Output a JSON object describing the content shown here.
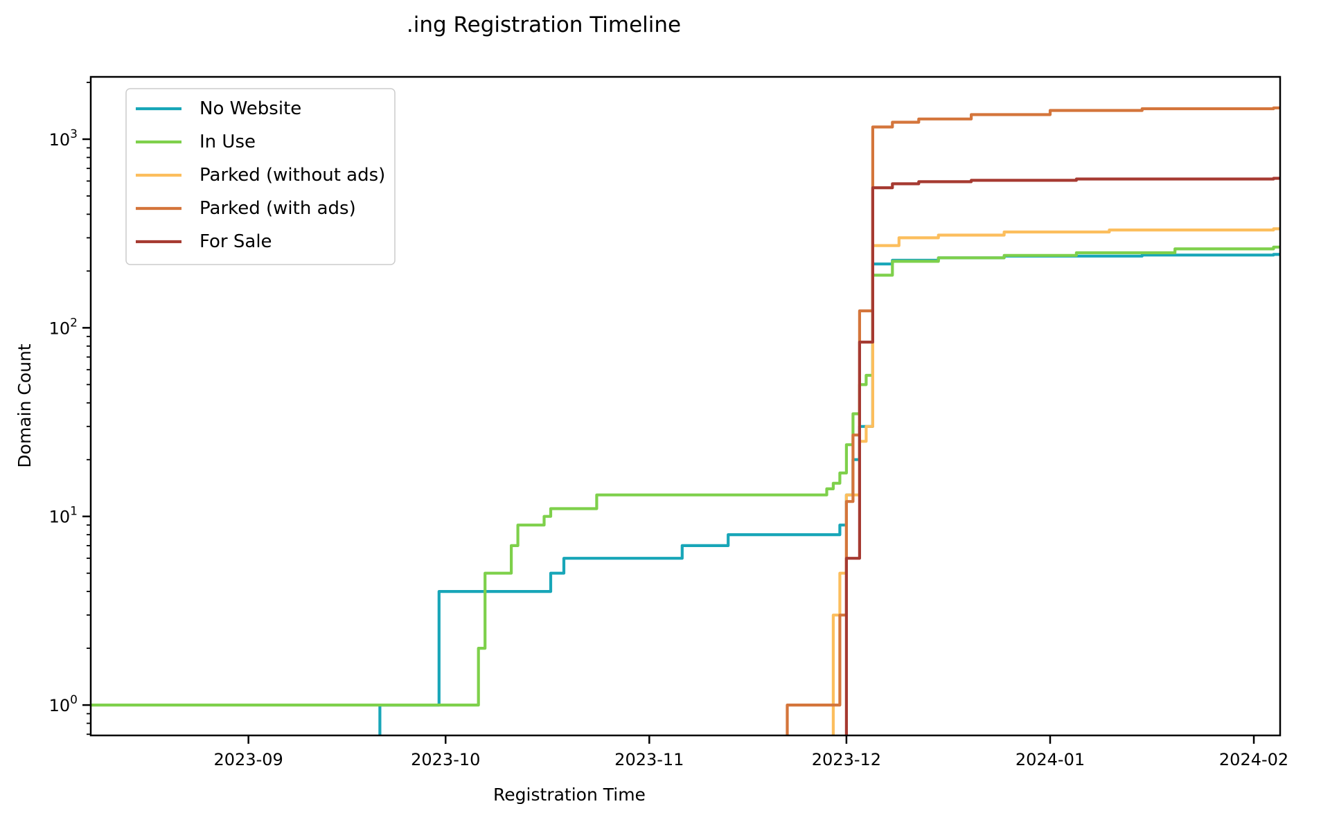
{
  "chart_data": {
    "type": "line",
    "subtype": "step-post-cumulative",
    "title": ".ing Registration Timeline",
    "xlabel": "Registration Time",
    "ylabel": "Domain Count",
    "yscale": "log",
    "grid": false,
    "legend_position": "upper-left",
    "xlim": [
      "2023-08-08",
      "2024-02-05"
    ],
    "ylim": [
      0.69,
      2140
    ],
    "x_ticks": [
      {
        "date": "2023-09-01",
        "label": "2023-09"
      },
      {
        "date": "2023-10-01",
        "label": "2023-10"
      },
      {
        "date": "2023-11-01",
        "label": "2023-11"
      },
      {
        "date": "2023-12-01",
        "label": "2023-12"
      },
      {
        "date": "2024-01-01",
        "label": "2024-01"
      },
      {
        "date": "2024-02-01",
        "label": "2024-02"
      }
    ],
    "y_ticks": [
      {
        "value": 1,
        "mantissa": "10",
        "exponent": "0"
      },
      {
        "value": 10,
        "mantissa": "10",
        "exponent": "1"
      },
      {
        "value": 100,
        "mantissa": "10",
        "exponent": "2"
      },
      {
        "value": 1000,
        "mantissa": "10",
        "exponent": "3"
      }
    ],
    "series": [
      {
        "name": "No Website",
        "color": "#18a6b8",
        "starts_at_zero": true,
        "points": [
          [
            "2023-09-21",
            1
          ],
          [
            "2023-09-30",
            4
          ],
          [
            "2023-10-17",
            5
          ],
          [
            "2023-10-19",
            6
          ],
          [
            "2023-11-06",
            7
          ],
          [
            "2023-11-13",
            8
          ],
          [
            "2023-11-30",
            9
          ],
          [
            "2023-12-01",
            13
          ],
          [
            "2023-12-02",
            20
          ],
          [
            "2023-12-03",
            30
          ],
          [
            "2023-12-05",
            218
          ],
          [
            "2023-12-08",
            228
          ],
          [
            "2023-12-15",
            235
          ],
          [
            "2023-12-25",
            240
          ],
          [
            "2024-01-15",
            243
          ],
          [
            "2024-02-04",
            245
          ]
        ]
      },
      {
        "name": "In Use",
        "color": "#7ed04b",
        "starts_at_zero": false,
        "points": [
          [
            "2023-08-08",
            1
          ],
          [
            "2023-10-06",
            2
          ],
          [
            "2023-10-07",
            5
          ],
          [
            "2023-10-11",
            7
          ],
          [
            "2023-10-12",
            9
          ],
          [
            "2023-10-16",
            10
          ],
          [
            "2023-10-17",
            11
          ],
          [
            "2023-10-24",
            13
          ],
          [
            "2023-11-28",
            14
          ],
          [
            "2023-11-29",
            15
          ],
          [
            "2023-11-30",
            17
          ],
          [
            "2023-12-01",
            24
          ],
          [
            "2023-12-02",
            35
          ],
          [
            "2023-12-03",
            50
          ],
          [
            "2023-12-04",
            56
          ],
          [
            "2023-12-05",
            190
          ],
          [
            "2023-12-08",
            225
          ],
          [
            "2023-12-15",
            235
          ],
          [
            "2023-12-25",
            242
          ],
          [
            "2024-01-05",
            250
          ],
          [
            "2024-01-20",
            262
          ],
          [
            "2024-02-04",
            268
          ]
        ]
      },
      {
        "name": "Parked (without ads)",
        "color": "#fcbe5d",
        "starts_at_zero": true,
        "points": [
          [
            "2023-11-29",
            3
          ],
          [
            "2023-11-30",
            5
          ],
          [
            "2023-12-01",
            13
          ],
          [
            "2023-12-03",
            25
          ],
          [
            "2023-12-04",
            30
          ],
          [
            "2023-12-05",
            273
          ],
          [
            "2023-12-09",
            300
          ],
          [
            "2023-12-15",
            310
          ],
          [
            "2023-12-25",
            322
          ],
          [
            "2024-01-10",
            330
          ],
          [
            "2024-02-04",
            335
          ]
        ]
      },
      {
        "name": "Parked (with ads)",
        "color": "#d4753b",
        "starts_at_zero": true,
        "points": [
          [
            "2023-11-22",
            1
          ],
          [
            "2023-11-30",
            3
          ],
          [
            "2023-12-01",
            12
          ],
          [
            "2023-12-02",
            27
          ],
          [
            "2023-12-03",
            123
          ],
          [
            "2023-12-05",
            1160
          ],
          [
            "2023-12-08",
            1230
          ],
          [
            "2023-12-12",
            1280
          ],
          [
            "2023-12-20",
            1350
          ],
          [
            "2024-01-01",
            1420
          ],
          [
            "2024-01-15",
            1450
          ],
          [
            "2024-02-04",
            1465
          ]
        ]
      },
      {
        "name": "For Sale",
        "color": "#a63a31",
        "starts_at_zero": true,
        "points": [
          [
            "2023-12-01",
            6
          ],
          [
            "2023-12-03",
            84
          ],
          [
            "2023-12-05",
            553
          ],
          [
            "2023-12-08",
            580
          ],
          [
            "2023-12-12",
            595
          ],
          [
            "2023-12-20",
            605
          ],
          [
            "2024-01-05",
            615
          ],
          [
            "2024-02-04",
            620
          ]
        ]
      }
    ]
  }
}
